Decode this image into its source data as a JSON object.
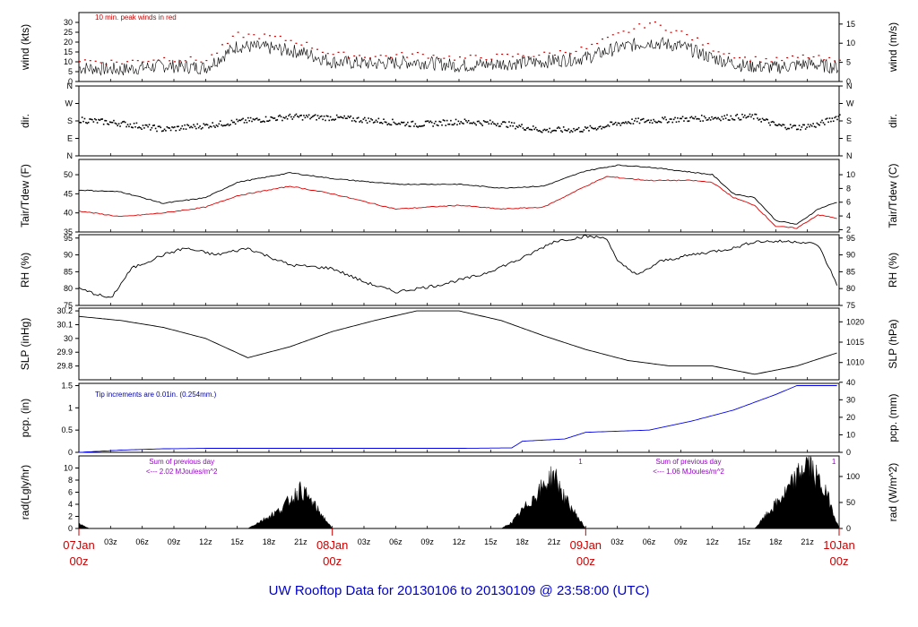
{
  "title": "UW Rooftop Data for 20130106  to  20130109 @ 23:58:00  (UTC)",
  "colors": {
    "title": "#0000cc",
    "day": "#cc0000",
    "peak": "#cc0000",
    "tdew": "#dd0000",
    "pcp": "#0000ee",
    "note_pcp": "#0000aa",
    "note_rad": "#9900cc"
  },
  "chart_data": [
    {
      "id": "wind",
      "type": "line",
      "ylabel_left": "wind (kts)",
      "ylabel_right": "wind (m/s)",
      "ylim": [
        0,
        35
      ],
      "yticks_left": [
        0,
        5,
        10,
        15,
        20,
        25,
        30
      ],
      "yticks_right": [
        0,
        5,
        10,
        15
      ],
      "right_scale": 0.5144,
      "annotation": "10 min. peak winds in red",
      "series": [
        {
          "values_key": "wind_kts",
          "points": [
            [
              0,
              7
            ],
            [
              4,
              6
            ],
            [
              8,
              8
            ],
            [
              12,
              7
            ],
            [
              15,
              18
            ],
            [
              18,
              17
            ],
            [
              21,
              15
            ],
            [
              24,
              10
            ],
            [
              28,
              9
            ],
            [
              32,
              10
            ],
            [
              36,
              8
            ],
            [
              40,
              9
            ],
            [
              44,
              10
            ],
            [
              48,
              12
            ],
            [
              51,
              17
            ],
            [
              54,
              20
            ],
            [
              57,
              18
            ],
            [
              60,
              12
            ],
            [
              63,
              8
            ],
            [
              66,
              7
            ],
            [
              69,
              9
            ],
            [
              72,
              7
            ]
          ]
        },
        {
          "values_key": "peak_kts",
          "points": [
            [
              0,
              11
            ],
            [
              4,
              10
            ],
            [
              8,
              12
            ],
            [
              12,
              11
            ],
            [
              15,
              24
            ],
            [
              18,
              23
            ],
            [
              21,
              20
            ],
            [
              24,
              14
            ],
            [
              28,
              13
            ],
            [
              32,
              14
            ],
            [
              36,
              12
            ],
            [
              40,
              13
            ],
            [
              44,
              14
            ],
            [
              48,
              17
            ],
            [
              51,
              24
            ],
            [
              54,
              30
            ],
            [
              57,
              25
            ],
            [
              60,
              17
            ],
            [
              63,
              12
            ],
            [
              66,
              11
            ],
            [
              69,
              13
            ],
            [
              72,
              10
            ]
          ]
        }
      ]
    },
    {
      "id": "dir",
      "type": "scatter",
      "ylabel_left": "dir.",
      "ylabel_right": "dir.",
      "ylim": [
        0,
        360
      ],
      "yticks_left": [
        "N",
        "E",
        "S",
        "W",
        "N"
      ],
      "yticks_right": [
        "N",
        "E",
        "S",
        "W",
        "N"
      ],
      "series": [
        {
          "values_key": "dir_deg",
          "points": [
            [
              0,
              190
            ],
            [
              4,
              170
            ],
            [
              8,
              140
            ],
            [
              12,
              160
            ],
            [
              16,
              185
            ],
            [
              20,
              205
            ],
            [
              24,
              200
            ],
            [
              28,
              185
            ],
            [
              32,
              165
            ],
            [
              36,
              180
            ],
            [
              40,
              170
            ],
            [
              44,
              135
            ],
            [
              48,
              140
            ],
            [
              52,
              180
            ],
            [
              56,
              190
            ],
            [
              60,
              200
            ],
            [
              64,
              205
            ],
            [
              66,
              160
            ],
            [
              68,
              150
            ],
            [
              70,
              165
            ],
            [
              72,
              210
            ]
          ]
        }
      ]
    },
    {
      "id": "temp",
      "type": "line",
      "ylabel_left": "Tair/Tdew (F)",
      "ylabel_right": "Tair/Tdew (C)",
      "ylim": [
        35,
        54
      ],
      "yticks_left": [
        35,
        40,
        45,
        50
      ],
      "yticks_right": [
        2,
        4,
        6,
        8,
        10
      ],
      "series": [
        {
          "values_key": "tair_f",
          "points": [
            [
              0,
              46
            ],
            [
              4,
              45.5
            ],
            [
              8,
              42.5
            ],
            [
              12,
              44
            ],
            [
              15,
              48
            ],
            [
              20,
              50.5
            ],
            [
              24,
              49
            ],
            [
              30,
              47.5
            ],
            [
              36,
              47.5
            ],
            [
              40,
              46.5
            ],
            [
              44,
              47
            ],
            [
              48,
              51
            ],
            [
              51,
              52.5
            ],
            [
              54,
              52
            ],
            [
              57,
              51
            ],
            [
              60,
              50
            ],
            [
              62,
              45
            ],
            [
              64,
              44
            ],
            [
              66,
              38
            ],
            [
              68,
              37
            ],
            [
              70,
              41
            ],
            [
              72,
              43
            ]
          ]
        },
        {
          "values_key": "tdew_f",
          "points": [
            [
              0,
              40.5
            ],
            [
              4,
              39
            ],
            [
              8,
              40
            ],
            [
              12,
              41.5
            ],
            [
              15,
              44.5
            ],
            [
              20,
              47
            ],
            [
              24,
              45
            ],
            [
              30,
              41
            ],
            [
              36,
              42
            ],
            [
              40,
              41
            ],
            [
              44,
              41.5
            ],
            [
              48,
              47
            ],
            [
              50,
              49.5
            ],
            [
              54,
              48.5
            ],
            [
              58,
              48.5
            ],
            [
              60,
              48
            ],
            [
              62,
              44
            ],
            [
              64,
              42
            ],
            [
              66,
              36.5
            ],
            [
              68,
              36
            ],
            [
              70,
              39.5
            ],
            [
              72,
              38.5
            ]
          ]
        }
      ]
    },
    {
      "id": "rh",
      "type": "line",
      "ylabel_left": "RH (%)",
      "ylabel_right": "RH (%)",
      "ylim": [
        75,
        96
      ],
      "yticks_left": [
        75,
        80,
        85,
        90,
        95
      ],
      "yticks_right": [
        75,
        80,
        85,
        90,
        95
      ],
      "series": [
        {
          "values_key": "rh",
          "points": [
            [
              0,
              80
            ],
            [
              3,
              77
            ],
            [
              5,
              86
            ],
            [
              8,
              90
            ],
            [
              10,
              92
            ],
            [
              13,
              90
            ],
            [
              16,
              92
            ],
            [
              20,
              87
            ],
            [
              24,
              86
            ],
            [
              27,
              82
            ],
            [
              30,
              79
            ],
            [
              34,
              81
            ],
            [
              38,
              84
            ],
            [
              42,
              89
            ],
            [
              45,
              94
            ],
            [
              48,
              95.5
            ],
            [
              50,
              95
            ],
            [
              51,
              88
            ],
            [
              53,
              84
            ],
            [
              55,
              88
            ],
            [
              58,
              90
            ],
            [
              62,
              92
            ],
            [
              64,
              94
            ],
            [
              68,
              94
            ],
            [
              70,
              93
            ],
            [
              72,
              80
            ]
          ]
        }
      ]
    },
    {
      "id": "slp",
      "type": "line",
      "ylabel_left": "SLP (inHg)",
      "ylabel_right": "SLP (hPa)",
      "ylim": [
        29.7,
        30.22
      ],
      "yticks_left": [
        29.8,
        29.9,
        30.0,
        30.1,
        30.2
      ],
      "yticks_right": [
        1010,
        1015,
        1020
      ],
      "series": [
        {
          "values_key": "slp_inhg",
          "points": [
            [
              0,
              30.16
            ],
            [
              4,
              30.13
            ],
            [
              8,
              30.08
            ],
            [
              12,
              30.0
            ],
            [
              16,
              29.86
            ],
            [
              20,
              29.94
            ],
            [
              24,
              30.05
            ],
            [
              28,
              30.13
            ],
            [
              32,
              30.2
            ],
            [
              36,
              30.2
            ],
            [
              40,
              30.13
            ],
            [
              44,
              30.02
            ],
            [
              48,
              29.92
            ],
            [
              52,
              29.84
            ],
            [
              56,
              29.8
            ],
            [
              60,
              29.8
            ],
            [
              64,
              29.74
            ],
            [
              68,
              29.8
            ],
            [
              72,
              29.9
            ]
          ]
        }
      ]
    },
    {
      "id": "pcp",
      "type": "area",
      "ylabel_left": "pcp. (in)",
      "ylabel_right": "pcp. (mm)",
      "ylim": [
        0,
        1.55
      ],
      "yticks_left": [
        0.0,
        0.5,
        1.0,
        1.5
      ],
      "yticks_right": [
        0,
        10,
        20,
        30,
        40
      ],
      "annotation": "Tip increments are 0.01in. (0.254mm.)",
      "series": [
        {
          "values_key": "pcp_in",
          "points": [
            [
              0,
              0
            ],
            [
              4,
              0.05
            ],
            [
              8,
              0.08
            ],
            [
              12,
              0.09
            ],
            [
              24,
              0.09
            ],
            [
              36,
              0.09
            ],
            [
              41,
              0.1
            ],
            [
              42,
              0.25
            ],
            [
              46,
              0.3
            ],
            [
              48,
              0.45
            ],
            [
              54,
              0.5
            ],
            [
              58,
              0.7
            ],
            [
              62,
              0.95
            ],
            [
              66,
              1.3
            ],
            [
              68,
              1.5
            ],
            [
              72,
              1.5
            ]
          ]
        }
      ]
    },
    {
      "id": "rad",
      "type": "area",
      "ylabel_left": "rad(Lgly/hr)",
      "ylabel_right": "rad (W/m^2)",
      "ylim": [
        0,
        12
      ],
      "yticks_left": [
        0,
        2,
        4,
        6,
        8,
        10
      ],
      "yticks_right": [
        0,
        50,
        100
      ],
      "notes": [
        {
          "hour": 6,
          "lines": [
            "Sum of previous day",
            "<--- 2.02 MJoules/m^2"
          ]
        },
        {
          "hour": 54,
          "lines": [
            "Sum of previous day",
            "<--- 1.06 MJoules/m^2"
          ]
        }
      ],
      "marks": [
        "1",
        "1"
      ],
      "series": [
        {
          "values_key": "rad",
          "points": [
            [
              0,
              0.8
            ],
            [
              1,
              0
            ],
            [
              16,
              0
            ],
            [
              17,
              1
            ],
            [
              19,
              3
            ],
            [
              21,
              6.5
            ],
            [
              22,
              4.5
            ],
            [
              24,
              0
            ],
            [
              40,
              0
            ],
            [
              41,
              1
            ],
            [
              43,
              5
            ],
            [
              45,
              9
            ],
            [
              46,
              5
            ],
            [
              48,
              0
            ],
            [
              64,
              0
            ],
            [
              65,
              2
            ],
            [
              67,
              6
            ],
            [
              69,
              11
            ],
            [
              71,
              5
            ],
            [
              72,
              0
            ]
          ]
        }
      ]
    }
  ],
  "x_axis": {
    "hour_ticks": [
      "03z",
      "06z",
      "09z",
      "12z",
      "15z",
      "18z",
      "21z"
    ],
    "days": [
      {
        "hour": 0,
        "date": "07Jan",
        "z": "00z"
      },
      {
        "hour": 24,
        "date": "08Jan",
        "z": "00z"
      },
      {
        "hour": 48,
        "date": "09Jan",
        "z": "00z"
      },
      {
        "hour": 72,
        "date": "10Jan",
        "z": "00z"
      }
    ]
  }
}
